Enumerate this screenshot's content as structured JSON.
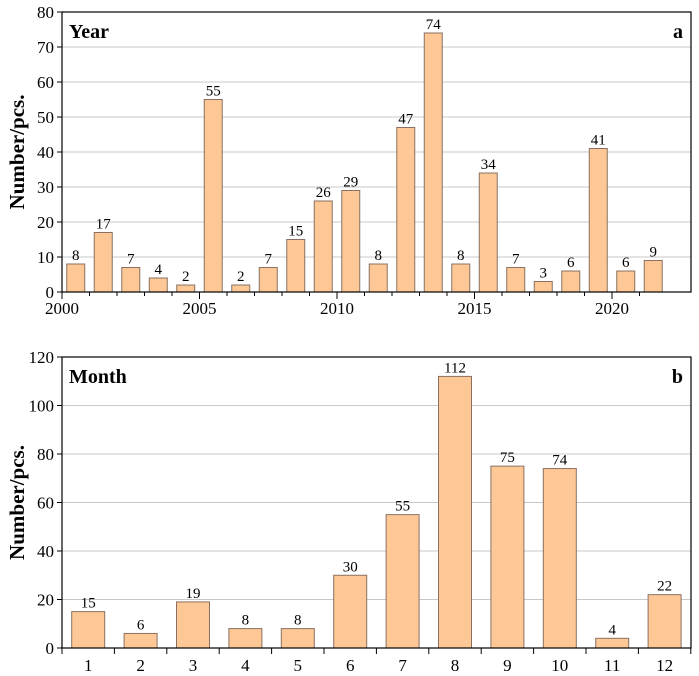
{
  "chart_data": [
    {
      "type": "bar",
      "title": "Year",
      "panel_label": "a",
      "ylabel": "Number/pcs.",
      "xlabel": "",
      "ylim": [
        0,
        80
      ],
      "yticks": [
        0,
        10,
        20,
        30,
        40,
        50,
        60,
        70,
        80
      ],
      "ytick_labels": [
        "0",
        "10",
        "20",
        "30",
        "40",
        "50",
        "60",
        "70",
        "80"
      ],
      "xtick_labels": [
        "2000",
        "2005",
        "2010",
        "2015",
        "2020"
      ],
      "xtick_values": [
        2000,
        2005,
        2010,
        2015,
        2020
      ],
      "grid": true,
      "bar_color": "#FDC895",
      "edge_color": "#8a7060",
      "categories": [
        2000,
        2001,
        2002,
        2003,
        2004,
        2005,
        2006,
        2007,
        2008,
        2009,
        2010,
        2011,
        2012,
        2013,
        2014,
        2015,
        2016,
        2017,
        2018,
        2019,
        2020,
        2021
      ],
      "values": [
        8,
        17,
        7,
        4,
        2,
        55,
        2,
        7,
        15,
        26,
        29,
        8,
        47,
        74,
        8,
        34,
        7,
        3,
        6,
        41,
        6,
        9
      ],
      "data_labels": [
        "8",
        "17",
        "7",
        "4",
        "2",
        "55",
        "2",
        "7",
        "15",
        "26",
        "29",
        "8",
        "47",
        "74",
        "8",
        "34",
        "7",
        "3",
        "6",
        "41",
        "6",
        "9"
      ]
    },
    {
      "type": "bar",
      "title": "Month",
      "panel_label": "b",
      "ylabel": "Number/pcs.",
      "xlabel": "",
      "ylim": [
        0,
        120
      ],
      "yticks": [
        0,
        20,
        40,
        60,
        80,
        100,
        120
      ],
      "ytick_labels": [
        "0",
        "20",
        "40",
        "60",
        "80",
        "100",
        "120"
      ],
      "xtick_labels": [
        "1",
        "2",
        "3",
        "4",
        "5",
        "6",
        "7",
        "8",
        "9",
        "10",
        "11",
        "12"
      ],
      "xtick_values": [
        1,
        2,
        3,
        4,
        5,
        6,
        7,
        8,
        9,
        10,
        11,
        12
      ],
      "grid": true,
      "bar_color": "#FDC895",
      "edge_color": "#8a7060",
      "categories": [
        1,
        2,
        3,
        4,
        5,
        6,
        7,
        8,
        9,
        10,
        11,
        12
      ],
      "values": [
        15,
        6,
        19,
        8,
        8,
        30,
        55,
        112,
        75,
        74,
        4,
        22
      ],
      "data_labels": [
        "15",
        "6",
        "19",
        "8",
        "8",
        "30",
        "55",
        "112",
        "75",
        "74",
        "4",
        "22"
      ]
    }
  ]
}
